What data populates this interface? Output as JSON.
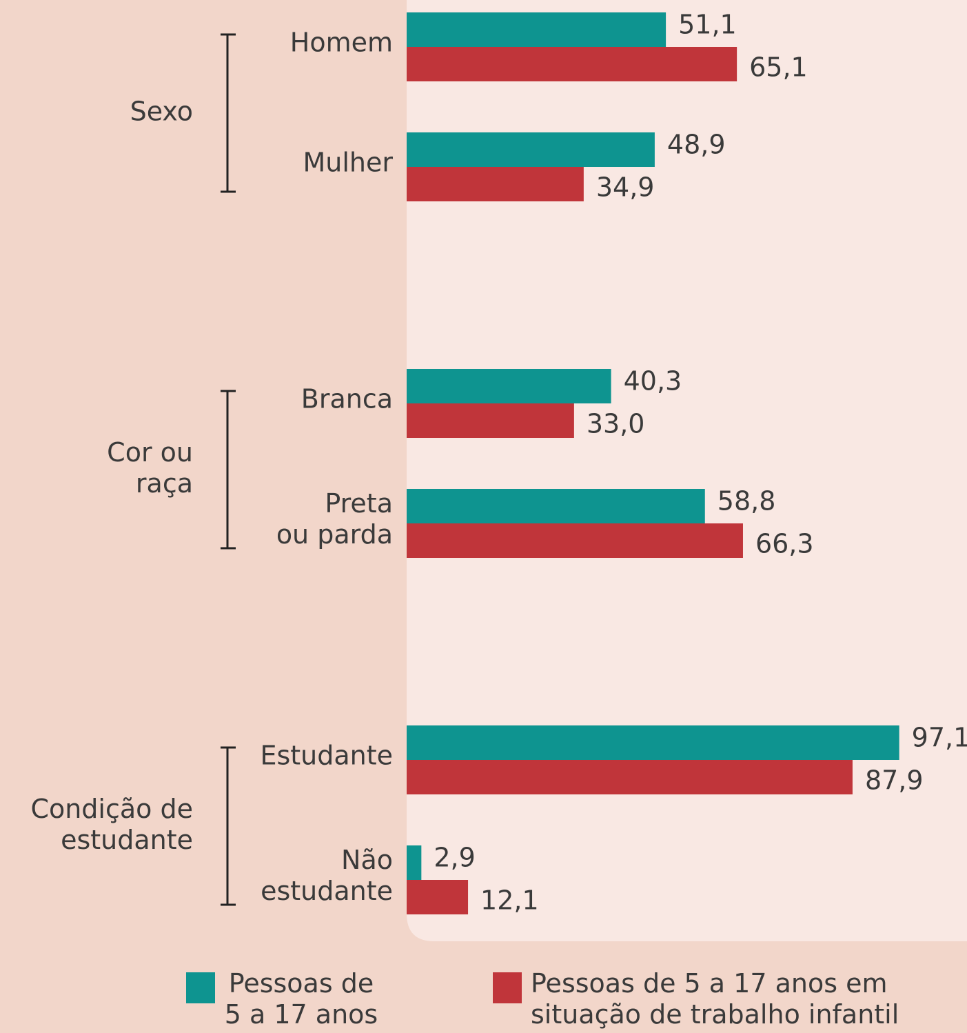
{
  "chart_data": {
    "type": "bar",
    "orientation": "horizontal",
    "groups": [
      {
        "label": [
          "Sexo"
        ],
        "categories": [
          [
            "Homem"
          ],
          [
            "Mulher"
          ]
        ]
      },
      {
        "label": [
          "Cor ou",
          "raça"
        ],
        "categories": [
          [
            "Branca"
          ],
          [
            "Preta",
            "ou parda"
          ]
        ]
      },
      {
        "label": [
          "Condição de",
          "estudante"
        ],
        "categories": [
          [
            "Estudante"
          ],
          [
            "Não",
            "estudante"
          ]
        ]
      }
    ],
    "xlim": [
      0,
      100
    ],
    "series": [
      {
        "name": [
          "Pessoas de",
          "5 a 17 anos"
        ],
        "color": "#0e9490",
        "values": [
          51.1,
          48.9,
          40.3,
          58.8,
          97.1,
          2.9
        ],
        "value_labels": [
          "51,1",
          "48,9",
          "40,3",
          "58,8",
          "97,1",
          "2,9"
        ]
      },
      {
        "name": [
          "Pessoas de 5 a 17 anos em",
          "situação de trabalho infantil"
        ],
        "color": "#c0353a",
        "values": [
          65.1,
          34.9,
          33.0,
          66.3,
          87.9,
          12.1
        ],
        "value_labels": [
          "65,1",
          "34,9",
          "33,0",
          "66,3",
          "87,9",
          "12,1"
        ]
      }
    ]
  }
}
